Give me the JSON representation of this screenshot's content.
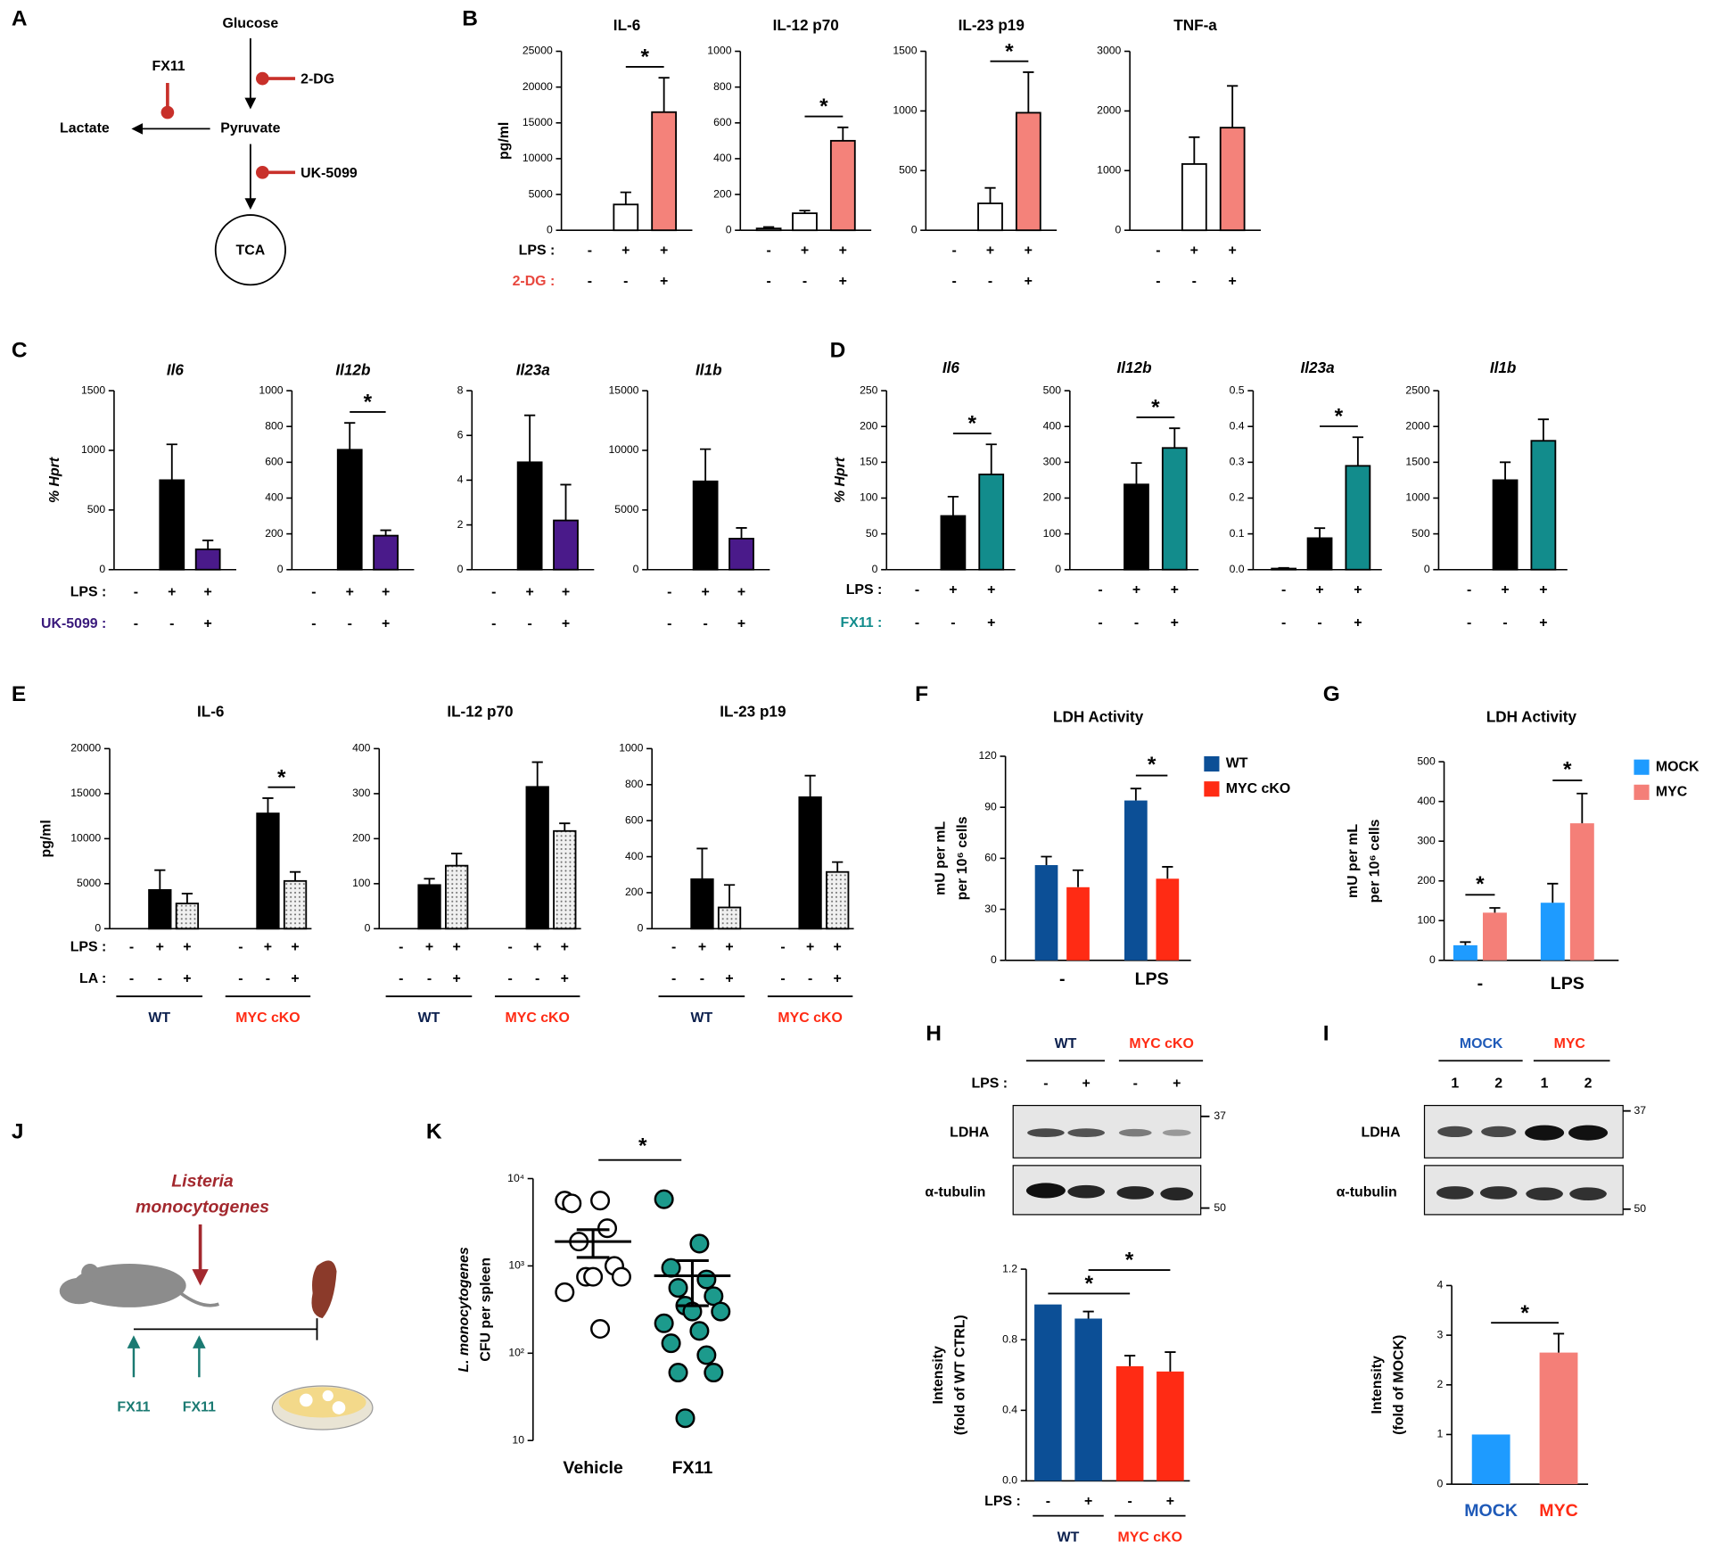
{
  "panel_labels": [
    "A",
    "B",
    "C",
    "D",
    "E",
    "F",
    "G",
    "H",
    "I",
    "J",
    "K"
  ],
  "diagram_a": {
    "substrates": [
      "Glucose",
      "Pyruvate",
      "Lactate",
      "TCA"
    ],
    "inhibitors": [
      "FX11",
      "2-DG",
      "UK-5099"
    ]
  },
  "diagram_j": {
    "pathogen": [
      "Listeria",
      "monocytogenes"
    ],
    "treatments": [
      "FX11",
      "FX11"
    ]
  },
  "blot_h": {
    "groups": [
      "WT",
      "MYC cKO"
    ],
    "condition": "LPS :",
    "signs": [
      "-",
      "+",
      "-",
      "+"
    ],
    "proteins": [
      "LDHA",
      "α-tubulin"
    ],
    "markers": [
      37,
      50
    ]
  },
  "blot_i": {
    "groups": [
      "MOCK",
      "MYC"
    ],
    "lanes": [
      "1",
      "2",
      "1",
      "2"
    ],
    "proteins": [
      "LDHA",
      "α-tubulin"
    ],
    "markers": [
      37,
      50
    ]
  },
  "chart_data": [
    {
      "type": "bar",
      "title": "IL-6",
      "ylabel": "pg/ml",
      "ylim": [
        0,
        25000
      ],
      "yticks": [
        0,
        5000,
        10000,
        15000,
        20000,
        25000
      ],
      "values": [
        0,
        3600,
        16500
      ],
      "errors": [
        null,
        1700,
        4800
      ],
      "colors": [
        "#ffffff",
        "#ffffff",
        "#f4827a"
      ],
      "conditions": [
        {
          "label": "LPS :",
          "color": "#000000",
          "signs": [
            "-",
            "+",
            "+"
          ]
        },
        {
          "label": "2-DG :",
          "color": "#e8473e",
          "signs": [
            "-",
            "-",
            "+"
          ]
        }
      ],
      "significance": [
        {
          "text": "*",
          "bars": [
            1,
            2
          ]
        }
      ]
    },
    {
      "type": "bar",
      "title": "IL-12 p70",
      "ylim": [
        0,
        1000
      ],
      "yticks": [
        0,
        200,
        400,
        600,
        800,
        1000
      ],
      "values": [
        10,
        95,
        500
      ],
      "errors": [
        8,
        15,
        75
      ],
      "colors": [
        "#ffffff",
        "#ffffff",
        "#f4827a"
      ],
      "conditions": [
        {
          "signs": [
            "-",
            "+",
            "+"
          ]
        },
        {
          "signs": [
            "-",
            "-",
            "+"
          ]
        }
      ],
      "significance": [
        {
          "text": "*",
          "bars": [
            1,
            2
          ]
        }
      ]
    },
    {
      "type": "bar",
      "title": "IL-23 p19",
      "ylim": [
        0,
        1500
      ],
      "yticks": [
        0,
        500,
        1000,
        1500
      ],
      "values": [
        0,
        225,
        985
      ],
      "errors": [
        null,
        130,
        340
      ],
      "colors": [
        "#ffffff",
        "#ffffff",
        "#f4827a"
      ],
      "conditions": [
        {
          "signs": [
            "-",
            "+",
            "+"
          ]
        },
        {
          "signs": [
            "-",
            "-",
            "+"
          ]
        }
      ],
      "significance": [
        {
          "text": "*",
          "bars": [
            1,
            2
          ]
        }
      ]
    },
    {
      "type": "bar",
      "title": "TNF-a",
      "ylim": [
        0,
        3000
      ],
      "yticks": [
        0,
        1000,
        2000,
        3000
      ],
      "values": [
        0,
        1110,
        1720
      ],
      "errors": [
        null,
        450,
        700
      ],
      "colors": [
        "#ffffff",
        "#ffffff",
        "#f4827a"
      ],
      "conditions": [
        {
          "signs": [
            "-",
            "+",
            "+"
          ]
        },
        {
          "signs": [
            "-",
            "-",
            "+"
          ]
        }
      ]
    },
    {
      "type": "bar",
      "title": "Il6",
      "ylabel": "% Hprt",
      "ylim": [
        0,
        1500
      ],
      "yticks": [
        0,
        500,
        1000,
        1500
      ],
      "values": [
        0,
        750,
        170
      ],
      "errors": [
        null,
        300,
        75
      ],
      "colors": [
        "#000000",
        "#000000",
        "#4a1a8a"
      ],
      "conditions": [
        {
          "label": "LPS :",
          "color": "#000000",
          "signs": [
            "-",
            "+",
            "+"
          ]
        },
        {
          "label": "UK-5099 :",
          "color": "#3a1a7c",
          "signs": [
            "-",
            "-",
            "+"
          ]
        }
      ]
    },
    {
      "type": "bar",
      "title": "Il12b",
      "ylim": [
        0,
        1000
      ],
      "yticks": [
        0,
        200,
        400,
        600,
        800,
        1000
      ],
      "values": [
        0,
        670,
        190
      ],
      "errors": [
        null,
        150,
        30
      ],
      "colors": [
        "#000000",
        "#000000",
        "#4a1a8a"
      ],
      "conditions": [
        {
          "signs": [
            "-",
            "+",
            "+"
          ]
        },
        {
          "signs": [
            "-",
            "-",
            "+"
          ]
        }
      ],
      "significance": [
        {
          "text": "*",
          "bars": [
            1,
            2
          ]
        }
      ]
    },
    {
      "type": "bar",
      "title": "Il23a",
      "ylim": [
        0,
        8
      ],
      "yticks": [
        0,
        2,
        4,
        6,
        8
      ],
      "values": [
        0,
        4.8,
        2.2
      ],
      "errors": [
        null,
        2.1,
        1.6
      ],
      "colors": [
        "#000000",
        "#000000",
        "#4a1a8a"
      ],
      "conditions": [
        {
          "signs": [
            "-",
            "+",
            "+"
          ]
        },
        {
          "signs": [
            "-",
            "-",
            "+"
          ]
        }
      ]
    },
    {
      "type": "bar",
      "title": "Il1b",
      "ylim": [
        0,
        15000
      ],
      "yticks": [
        0,
        5000,
        10000,
        15000
      ],
      "values": [
        0,
        7400,
        2600
      ],
      "errors": [
        null,
        2700,
        900
      ],
      "colors": [
        "#000000",
        "#000000",
        "#4a1a8a"
      ],
      "conditions": [
        {
          "signs": [
            "-",
            "+",
            "+"
          ]
        },
        {
          "signs": [
            "-",
            "-",
            "+"
          ]
        }
      ]
    },
    {
      "type": "bar",
      "title": "Il6",
      "ylabel": "% Hprt",
      "ylim": [
        0,
        250
      ],
      "yticks": [
        0,
        50,
        100,
        150,
        200,
        250
      ],
      "values": [
        0,
        75,
        133
      ],
      "errors": [
        null,
        27,
        42
      ],
      "colors": [
        "#000000",
        "#000000",
        "#128c8c"
      ],
      "conditions": [
        {
          "label": "LPS :",
          "color": "#000000",
          "signs": [
            "-",
            "+",
            "+"
          ]
        },
        {
          "label": "FX11 :",
          "color": "#128c8c",
          "signs": [
            "-",
            "-",
            "+"
          ]
        }
      ],
      "significance": [
        {
          "text": "*",
          "bars": [
            1,
            2
          ]
        }
      ]
    },
    {
      "type": "bar",
      "title": "Il12b",
      "ylim": [
        0,
        500
      ],
      "yticks": [
        0,
        100,
        200,
        300,
        400,
        500
      ],
      "values": [
        0,
        238,
        340
      ],
      "errors": [
        null,
        60,
        55
      ],
      "colors": [
        "#000000",
        "#000000",
        "#128c8c"
      ],
      "conditions": [
        {
          "signs": [
            "-",
            "+",
            "+"
          ]
        },
        {
          "signs": [
            "-",
            "-",
            "+"
          ]
        }
      ],
      "significance": [
        {
          "text": "*",
          "bars": [
            1,
            2
          ]
        }
      ]
    },
    {
      "type": "bar",
      "title": "Il23a",
      "ylim": [
        0,
        0.5
      ],
      "yticks": [
        {
          "value": 0,
          "label": "0.0"
        },
        0.1,
        0.2,
        0.3,
        0.4,
        0.5
      ],
      "values": [
        0.003,
        0.088,
        0.29
      ],
      "errors": [
        0.002,
        0.028,
        0.08
      ],
      "colors": [
        "#000000",
        "#000000",
        "#128c8c"
      ],
      "conditions": [
        {
          "signs": [
            "-",
            "+",
            "+"
          ]
        },
        {
          "signs": [
            "-",
            "-",
            "+"
          ]
        }
      ],
      "significance": [
        {
          "text": "*",
          "bars": [
            1,
            2
          ]
        }
      ]
    },
    {
      "type": "bar",
      "title": "Il1b",
      "ylim": [
        0,
        2500
      ],
      "yticks": [
        0,
        500,
        1000,
        1500,
        2000,
        2500
      ],
      "values": [
        0,
        1250,
        1800
      ],
      "errors": [
        null,
        250,
        300
      ],
      "colors": [
        "#000000",
        "#000000",
        "#128c8c"
      ],
      "conditions": [
        {
          "signs": [
            "-",
            "+",
            "+"
          ]
        },
        {
          "signs": [
            "-",
            "-",
            "+"
          ]
        }
      ]
    },
    {
      "type": "bar",
      "title": "IL-6",
      "ylabel": "pg/ml",
      "ylim": [
        0,
        20000
      ],
      "yticks": [
        0,
        5000,
        10000,
        15000,
        20000
      ],
      "values": [
        0,
        4300,
        2800,
        0,
        12800,
        5300
      ],
      "errors": [
        null,
        2200,
        1100,
        null,
        1700,
        1000
      ],
      "colors": [
        "#000000",
        "#000000",
        "#e6e6e6",
        "#000000",
        "#000000",
        "#e6e6e6"
      ],
      "patterns": [
        false,
        false,
        true,
        false,
        false,
        true
      ],
      "conditions": [
        {
          "label": "LPS :",
          "color": "#000000",
          "signs": [
            "-",
            "+",
            "+",
            "-",
            "+",
            "+"
          ]
        },
        {
          "label": "LA :",
          "color": "#000000",
          "signs": [
            "-",
            "-",
            "+",
            "-",
            "-",
            "+"
          ]
        }
      ],
      "groups": [
        {
          "label": "WT",
          "color": "#0b1f4d",
          "span": [
            0,
            2
          ]
        },
        {
          "label": "MYC cKO",
          "color": "#ff2b14",
          "span": [
            3,
            5
          ]
        }
      ],
      "significance": [
        {
          "text": "*",
          "bars": [
            4,
            5
          ]
        }
      ]
    },
    {
      "type": "bar",
      "title": "IL-12 p70",
      "ylim": [
        0,
        400
      ],
      "yticks": [
        0,
        100,
        200,
        300,
        400
      ],
      "values": [
        0,
        97,
        140,
        0,
        315,
        217
      ],
      "errors": [
        null,
        14,
        27,
        null,
        55,
        17
      ],
      "colors": [
        "#000000",
        "#000000",
        "#e6e6e6",
        "#000000",
        "#000000",
        "#e6e6e6"
      ],
      "patterns": [
        false,
        false,
        true,
        false,
        false,
        true
      ],
      "conditions": [
        {
          "signs": [
            "-",
            "+",
            "+",
            "-",
            "+",
            "+"
          ]
        },
        {
          "signs": [
            "-",
            "-",
            "+",
            "-",
            "-",
            "+"
          ]
        }
      ],
      "groups": [
        {
          "label": "WT",
          "color": "#0b1f4d",
          "span": [
            0,
            2
          ]
        },
        {
          "label": "MYC cKO",
          "color": "#ff2b14",
          "span": [
            3,
            5
          ]
        }
      ]
    },
    {
      "type": "bar",
      "title": "IL-23 p19",
      "ylim": [
        0,
        1000
      ],
      "yticks": [
        0,
        200,
        400,
        600,
        800,
        1000
      ],
      "values": [
        0,
        275,
        118,
        0,
        730,
        315
      ],
      "errors": [
        null,
        170,
        125,
        null,
        120,
        55
      ],
      "colors": [
        "#000000",
        "#000000",
        "#e6e6e6",
        "#000000",
        "#000000",
        "#e6e6e6"
      ],
      "patterns": [
        false,
        false,
        true,
        false,
        false,
        true
      ],
      "conditions": [
        {
          "signs": [
            "-",
            "+",
            "+",
            "-",
            "+",
            "+"
          ]
        },
        {
          "signs": [
            "-",
            "-",
            "+",
            "-",
            "-",
            "+"
          ]
        }
      ],
      "groups": [
        {
          "label": "WT",
          "color": "#0b1f4d",
          "span": [
            0,
            2
          ]
        },
        {
          "label": "MYC cKO",
          "color": "#ff2b14",
          "span": [
            3,
            5
          ]
        }
      ]
    },
    {
      "type": "grouped_bar",
      "title": "LDH Activity",
      "ylabel": [
        "mU per mL",
        "per 10⁶ cells"
      ],
      "ylim": [
        0,
        120
      ],
      "yticks": [
        0,
        30,
        60,
        90,
        120
      ],
      "categories": [
        "-",
        "LPS"
      ],
      "series": [
        {
          "name": "WT",
          "color": "#0c4f96",
          "values": [
            56,
            94
          ],
          "errors": [
            5,
            7
          ]
        },
        {
          "name": "MYC cKO",
          "color": "#ff2b14",
          "values": [
            43,
            48
          ],
          "errors": [
            10,
            7
          ]
        }
      ],
      "significance": [
        {
          "text": "*",
          "category": 1
        }
      ]
    },
    {
      "type": "grouped_bar",
      "title": "LDH Activity",
      "ylabel": [
        "mU per mL",
        "per 10⁶ cells"
      ],
      "ylim": [
        0,
        500
      ],
      "yticks": [
        0,
        100,
        200,
        300,
        400,
        500
      ],
      "categories": [
        "-",
        "LPS"
      ],
      "series": [
        {
          "name": "MOCK",
          "color": "#1e9bff",
          "values": [
            38,
            145
          ],
          "errors": [
            8,
            48
          ]
        },
        {
          "name": "MYC",
          "color": "#f47f78",
          "values": [
            120,
            345
          ],
          "errors": [
            12,
            75
          ]
        }
      ],
      "significance": [
        {
          "text": "*",
          "category": 0
        },
        {
          "text": "*",
          "category": 1
        }
      ]
    },
    {
      "type": "bar",
      "ylabel": [
        "Intensity",
        "(fold of WT CTRL)"
      ],
      "ylim": [
        0,
        1.2
      ],
      "yticks": [
        {
          "value": 0,
          "label": "0.0"
        },
        0.4,
        0.8,
        1.2
      ],
      "values": [
        1,
        0.92,
        0.65,
        0.62
      ],
      "errors": [
        null,
        0.04,
        0.06,
        0.11
      ],
      "colors": [
        "#0c4f96",
        "#0c4f96",
        "#ff2b14",
        "#ff2b14"
      ],
      "conditions": [
        {
          "label": "LPS :",
          "color": "#000000",
          "signs": [
            "-",
            "+",
            "-",
            "+"
          ]
        }
      ],
      "groups": [
        {
          "label": "WT",
          "color": "#0b1f4d",
          "span": [
            0,
            1
          ]
        },
        {
          "label": "MYC cKO",
          "color": "#ff2b14",
          "span": [
            2,
            3
          ]
        }
      ],
      "significance": [
        {
          "text": "*",
          "bars": [
            0,
            2
          ]
        },
        {
          "text": "*",
          "bars": [
            1,
            3
          ]
        }
      ]
    },
    {
      "type": "bar",
      "ylabel": [
        "Intensity",
        "(fold of MOCK)"
      ],
      "ylim": [
        0,
        4
      ],
      "yticks": [
        0,
        1,
        2,
        3,
        4
      ],
      "categories": [
        "MOCK",
        "MYC"
      ],
      "category_colors": [
        "#1f5ab8",
        "#ff2b14"
      ],
      "values": [
        1,
        2.65
      ],
      "errors": [
        null,
        0.38
      ],
      "colors": [
        "#1e9bff",
        "#f47f78"
      ],
      "significance": [
        {
          "text": "*",
          "bars": [
            0,
            1
          ]
        }
      ]
    },
    {
      "type": "dot",
      "log": true,
      "ylabel": [
        "L. monocytogenes",
        "CFU per spleen"
      ],
      "ylim": [
        10,
        10000
      ],
      "yticks": [
        10,
        {
          "value": 100,
          "label": "10²"
        },
        {
          "value": 1000,
          "label": "10³"
        },
        {
          "value": 10000,
          "label": "10⁴"
        }
      ],
      "categories": [
        "Vehicle",
        "FX11"
      ],
      "groups": [
        {
          "fill": "#ffffff",
          "values": [
            5600,
            5600,
            5200,
            2700,
            1900,
            1000,
            750,
            750,
            750,
            500,
            190
          ],
          "mean": 1900,
          "sem": [
            1250,
            2600
          ]
        },
        {
          "fill": "#1c9a8c",
          "values": [
            5800,
            1800,
            950,
            700,
            560,
            450,
            350,
            300,
            300,
            220,
            180,
            130,
            95,
            60,
            60,
            18
          ],
          "mean": 770,
          "sem": [
            350,
            1150
          ]
        }
      ],
      "significance": [
        {
          "text": "*",
          "categories": [
            0,
            1
          ]
        }
      ]
    }
  ]
}
